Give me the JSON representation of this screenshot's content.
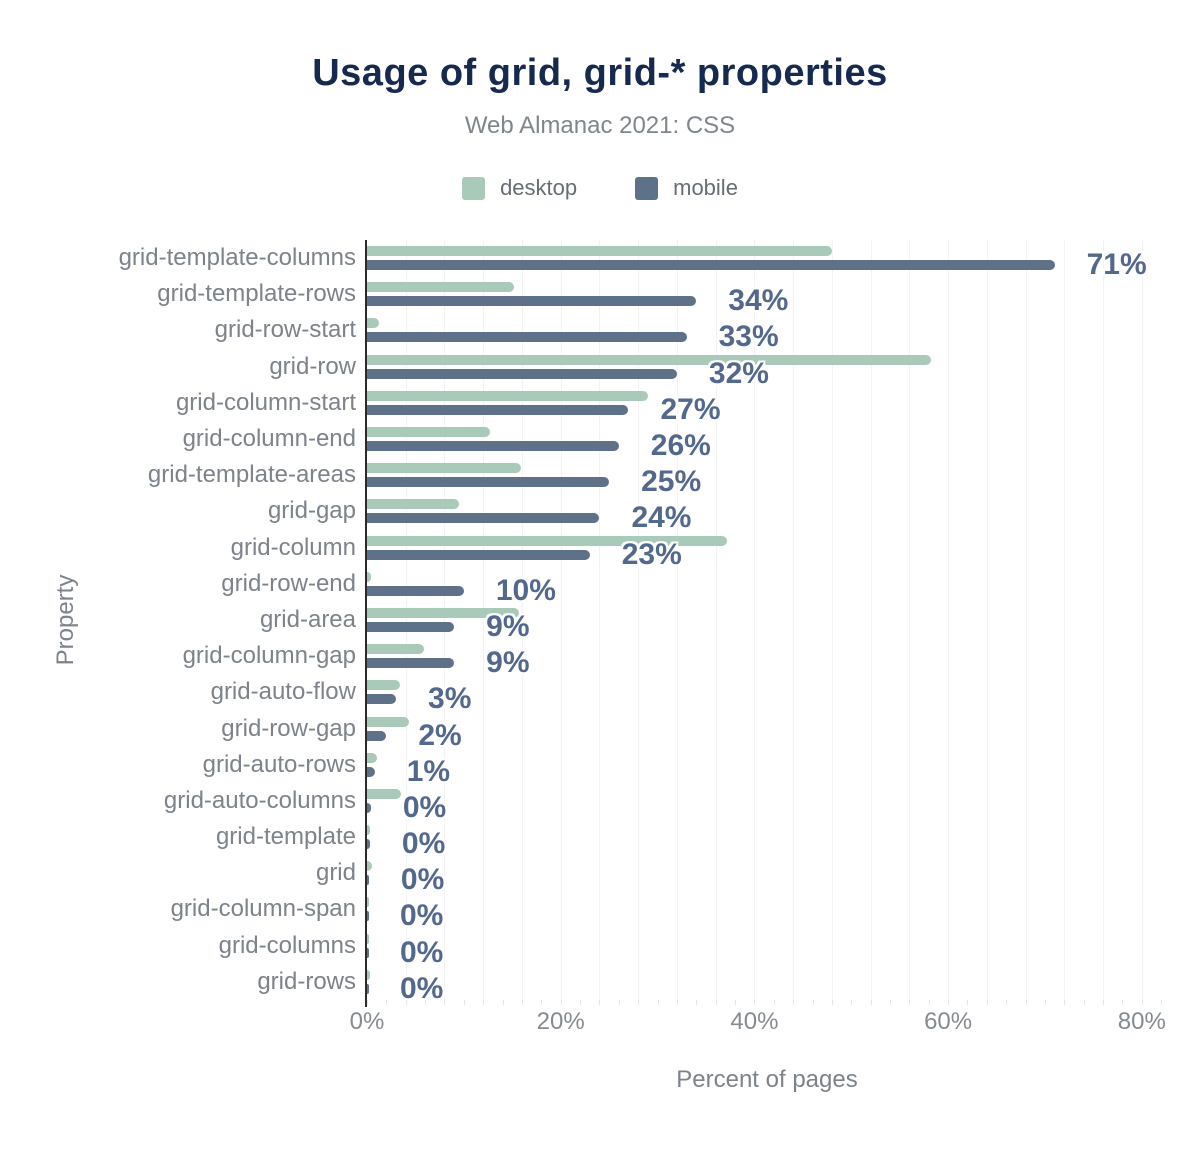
{
  "header": {
    "title": "Usage of grid, grid-* properties",
    "subtitle": "Web Almanac 2021: CSS"
  },
  "legend": [
    {
      "label": "desktop",
      "color": "#a9cab9"
    },
    {
      "label": "mobile",
      "color": "#5f7189"
    }
  ],
  "colors": {
    "title": "#16294e",
    "subtitle": "#7f868e",
    "desktop_bar": "#a9cab9",
    "mobile_bar": "#5f7189",
    "value_label": "#52688c",
    "axis_text": "#7d838a",
    "gridline": "#f2f3f5",
    "axis_line": "#2b2b2b"
  },
  "chart_data": {
    "type": "bar",
    "orientation": "horizontal",
    "title": "Usage of grid, grid-* properties",
    "subtitle": "Web Almanac 2021: CSS",
    "xlabel": "Percent of pages",
    "ylabel": "Property",
    "xlim": [
      0,
      82.6
    ],
    "x_tick_step": 20,
    "x_ticks": [
      "0%",
      "20%",
      "40%",
      "60%",
      "80%"
    ],
    "gridlines_every_pct": 4,
    "minor_ticks_every_pct": 2,
    "legend_position": "top-center",
    "categories": [
      "grid-template-columns",
      "grid-template-rows",
      "grid-row-start",
      "grid-row",
      "grid-column-start",
      "grid-column-end",
      "grid-template-areas",
      "grid-gap",
      "grid-column",
      "grid-row-end",
      "grid-area",
      "grid-column-gap",
      "grid-auto-flow",
      "grid-row-gap",
      "grid-auto-rows",
      "grid-auto-columns",
      "grid-template",
      "grid",
      "grid-column-span",
      "grid-columns",
      "grid-rows"
    ],
    "series": [
      {
        "name": "desktop",
        "color": "#a9cab9",
        "values": [
          48,
          15.2,
          1.2,
          58.2,
          29,
          12.7,
          15.9,
          9.5,
          37.2,
          0.4,
          15.7,
          5.9,
          3.4,
          4.3,
          1,
          3.5,
          0.3,
          0.5,
          0.1,
          0.2,
          0.3
        ]
      },
      {
        "name": "mobile",
        "color": "#5f7189",
        "values": [
          71,
          34,
          33,
          32,
          27,
          26,
          25,
          24,
          23,
          10,
          9,
          9,
          3,
          2,
          0.8,
          0.4,
          0.3,
          0.2,
          0.1,
          0.1,
          0.1
        ]
      }
    ],
    "value_labels": [
      "71%",
      "34%",
      "33%",
      "32%",
      "27%",
      "26%",
      "25%",
      "24%",
      "23%",
      "10%",
      "9%",
      "9%",
      "3%",
      "2%",
      "1%",
      "0%",
      "0%",
      "0%",
      "0%",
      "0%",
      "0%"
    ]
  }
}
